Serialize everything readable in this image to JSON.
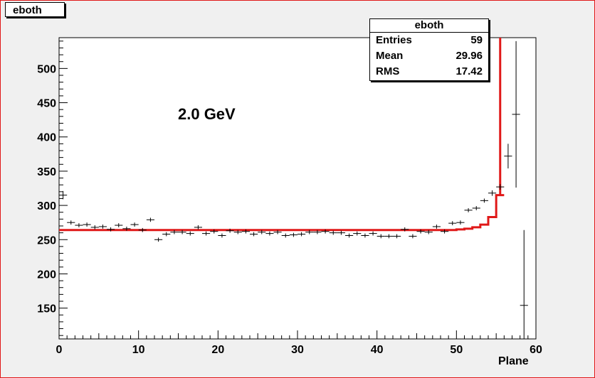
{
  "canvas": {
    "title": "eboth"
  },
  "stats": {
    "title": "eboth",
    "rows": [
      {
        "label": "Entries",
        "value": "59"
      },
      {
        "label": "Mean",
        "value": "29.96"
      },
      {
        "label": "RMS",
        "value": "17.42"
      }
    ]
  },
  "annotation": "2.0 GeV",
  "colors": {
    "fit": "#e01818",
    "points": "#000000",
    "frame": "#e01818"
  },
  "chart_data": {
    "type": "scatter",
    "title": "eboth",
    "xlabel": "Plane",
    "ylabel": "",
    "xlim": [
      0,
      60
    ],
    "ylim": [
      105,
      545
    ],
    "xticks": [
      0,
      10,
      20,
      30,
      40,
      50,
      60
    ],
    "yticks": [
      150,
      200,
      250,
      300,
      350,
      400,
      450,
      500
    ],
    "grid": false,
    "series": [
      {
        "kind": "points_with_errors",
        "x": [
          0.5,
          1.5,
          2.5,
          3.5,
          4.5,
          5.5,
          6.5,
          7.5,
          8.5,
          9.5,
          10.5,
          11.5,
          12.5,
          13.5,
          14.5,
          15.5,
          16.5,
          17.5,
          18.5,
          19.5,
          20.5,
          21.5,
          22.5,
          23.5,
          24.5,
          25.5,
          26.5,
          27.5,
          28.5,
          29.5,
          30.5,
          31.5,
          32.5,
          33.5,
          34.5,
          35.5,
          36.5,
          37.5,
          38.5,
          39.5,
          40.5,
          41.5,
          42.5,
          43.5,
          44.5,
          45.5,
          46.5,
          47.5,
          48.5,
          49.5,
          50.5,
          51.5,
          52.5,
          53.5,
          54.5,
          55.5,
          56.5,
          57.5,
          58.5
        ],
        "y": [
          315,
          275,
          271,
          272,
          268,
          269,
          265,
          271,
          266,
          272,
          264,
          279,
          250,
          258,
          261,
          261,
          259,
          268,
          259,
          262,
          256,
          263,
          261,
          262,
          258,
          261,
          259,
          261,
          256,
          257,
          258,
          261,
          261,
          262,
          260,
          260,
          256,
          259,
          256,
          259,
          255,
          255,
          255,
          265,
          255,
          262,
          261,
          269,
          262,
          274,
          275,
          293,
          296,
          307,
          318,
          327,
          372,
          433,
          154
        ],
        "yerr": [
          6,
          3,
          3,
          3,
          3,
          3,
          3,
          3,
          3,
          3,
          3,
          3,
          3,
          3,
          3,
          3,
          3,
          3,
          3,
          3,
          3,
          3,
          3,
          3,
          3,
          3,
          3,
          3,
          3,
          3,
          3,
          3,
          3,
          3,
          3,
          3,
          3,
          3,
          3,
          3,
          3,
          3,
          3,
          3,
          3,
          3,
          3,
          3,
          3,
          3,
          3,
          3,
          3,
          3,
          4,
          4,
          18,
          107,
          110
        ]
      },
      {
        "kind": "fit_step",
        "x": [
          0,
          1,
          2,
          3,
          4,
          5,
          6,
          7,
          8,
          9,
          10,
          11,
          12,
          13,
          14,
          15,
          16,
          17,
          18,
          19,
          20,
          21,
          22,
          23,
          24,
          25,
          26,
          27,
          28,
          29,
          30,
          31,
          32,
          33,
          34,
          35,
          36,
          37,
          38,
          39,
          40,
          41,
          42,
          43,
          44,
          45,
          46,
          47,
          48,
          49,
          50,
          51,
          52,
          53,
          54,
          55
        ],
        "y": [
          264,
          264,
          264,
          264,
          264,
          264,
          264,
          264,
          264,
          264,
          264,
          264,
          264,
          264,
          264,
          264,
          264,
          264,
          264,
          264,
          264,
          264,
          264,
          264,
          264,
          264,
          264,
          264,
          264,
          264,
          264,
          264,
          264,
          264,
          264,
          264,
          264,
          264,
          264,
          264,
          264,
          264,
          264,
          264,
          264,
          264,
          264,
          264,
          264,
          264,
          265,
          266,
          268,
          272,
          283,
          315
        ],
        "spike_x": 55.5,
        "spike_top": 545
      }
    ]
  }
}
